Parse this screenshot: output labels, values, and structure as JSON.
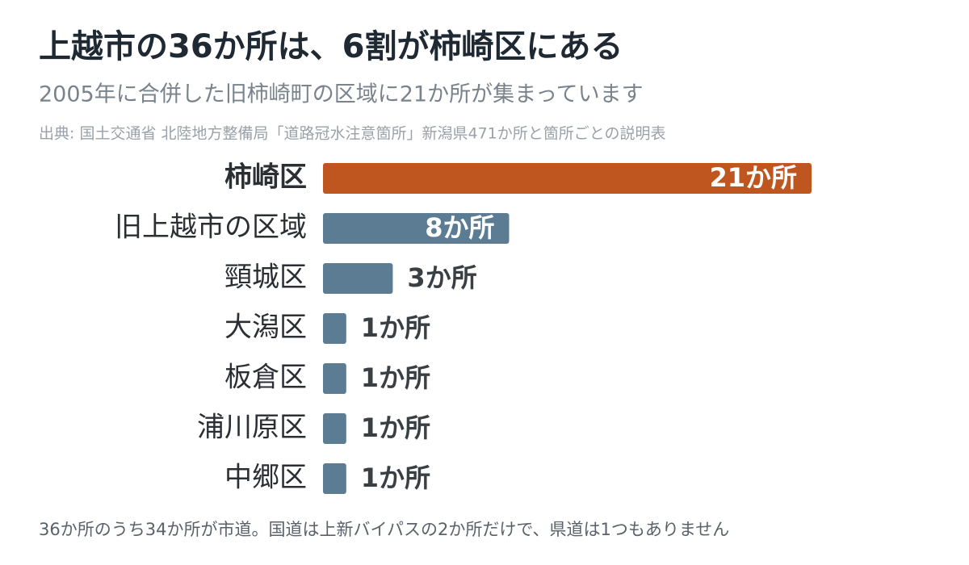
{
  "chart_data": {
    "type": "bar",
    "orientation": "horizontal",
    "title": "上越市の36か所は、6割が柿崎区にある",
    "subtitle": "2005年に合併した旧柿崎町の区域に21か所が集まっています",
    "source": "出典: 国土交通省 北陸地方整備局「道路冠水注意箇所」新潟県471か所と箇所ごとの説明表",
    "note": "36か所のうち34か所が市道。国道は上新バイパスの2か所だけで、県道は1つもありません",
    "categories": [
      "柿崎区",
      "旧上越市の区域",
      "頸城区",
      "大潟区",
      "板倉区",
      "浦川原区",
      "中郷区"
    ],
    "values": [
      21,
      8,
      3,
      1,
      1,
      1,
      1
    ],
    "value_labels": [
      "21か所",
      "8か所",
      "3か所",
      "1か所",
      "1か所",
      "1か所",
      "1か所"
    ],
    "colors": [
      "#c0561f",
      "#5b7c92",
      "#5b7c92",
      "#5b7c92",
      "#5b7c92",
      "#5b7c92",
      "#5b7c92"
    ]
  }
}
